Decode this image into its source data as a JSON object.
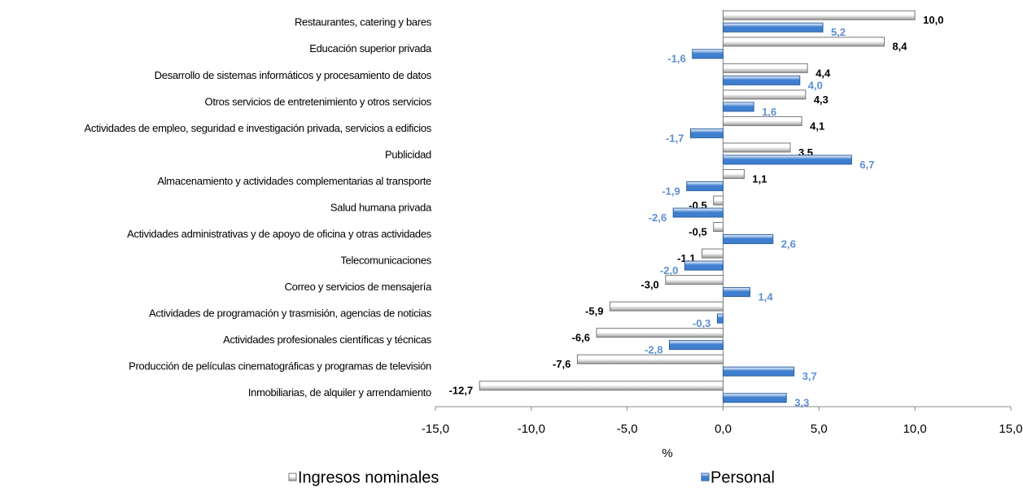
{
  "chart_data": {
    "type": "bar",
    "orientation": "horizontal",
    "categories": [
      "Restaurantes, catering y bares",
      "Educación superior privada",
      "Desarrollo de sistemas informáticos y procesamiento de datos",
      "Otros servicios de entretenimiento y otros servicios",
      "Actividades de empleo, seguridad e investigación privada, servicios a edificios",
      "Publicidad",
      "Almacenamiento y actividades complementarias al transporte",
      "Salud humana privada",
      "Actividades administrativas y de apoyo de oficina y otras actividades",
      "Telecomunicaciones",
      "Correo y servicios de mensajería",
      "Actividades de programación y trasmisión, agencias de noticias",
      "Actividades profesionales científicas y técnicas",
      "Producción de películas cinematográficas y programas de televisión",
      "Inmobiliarias, de alquiler y arrendamiento"
    ],
    "series": [
      {
        "name": "Ingresos nominales",
        "color": "#9a9a9a",
        "label_color": "#000000",
        "values": [
          10.0,
          8.4,
          4.4,
          4.3,
          4.1,
          3.5,
          1.1,
          -0.5,
          -0.5,
          -1.1,
          -3.0,
          -5.9,
          -6.6,
          -7.6,
          -12.7
        ],
        "value_labels": [
          "10,0",
          "8,4",
          "4,4",
          "4,3",
          "4,1",
          "3,5",
          "1,1",
          "-0,5",
          "-0,5",
          "-1,1",
          "-3,0",
          "-5,9",
          "-6,6",
          "-7,6",
          "-12,7"
        ]
      },
      {
        "name": "Personal",
        "color": "#3f7fd0",
        "label_color": "#5b8fd1",
        "values": [
          5.2,
          -1.6,
          4.0,
          1.6,
          -1.7,
          6.7,
          -1.9,
          -2.6,
          2.6,
          -2.0,
          1.4,
          -0.3,
          -2.8,
          3.7,
          3.3
        ],
        "value_labels": [
          "5,2",
          "-1,6",
          "4,0",
          "1,6",
          "-1,7",
          "6,7",
          "-1,9",
          "-2,6",
          "2,6",
          "-2,0",
          "1,4",
          "-0,3",
          "-2,8",
          "3,7",
          "3,3"
        ]
      }
    ],
    "xlabel": "%",
    "xlim": [
      -15,
      15
    ],
    "xticks": [
      {
        "value": -15,
        "label": "-15,0"
      },
      {
        "value": -10,
        "label": "-10,0"
      },
      {
        "value": -5,
        "label": "-5,0"
      },
      {
        "value": 0,
        "label": "0,0"
      },
      {
        "value": 5,
        "label": "5,0"
      },
      {
        "value": 10,
        "label": "10,0"
      },
      {
        "value": 15,
        "label": "15,0"
      }
    ],
    "legend": "bottom"
  }
}
